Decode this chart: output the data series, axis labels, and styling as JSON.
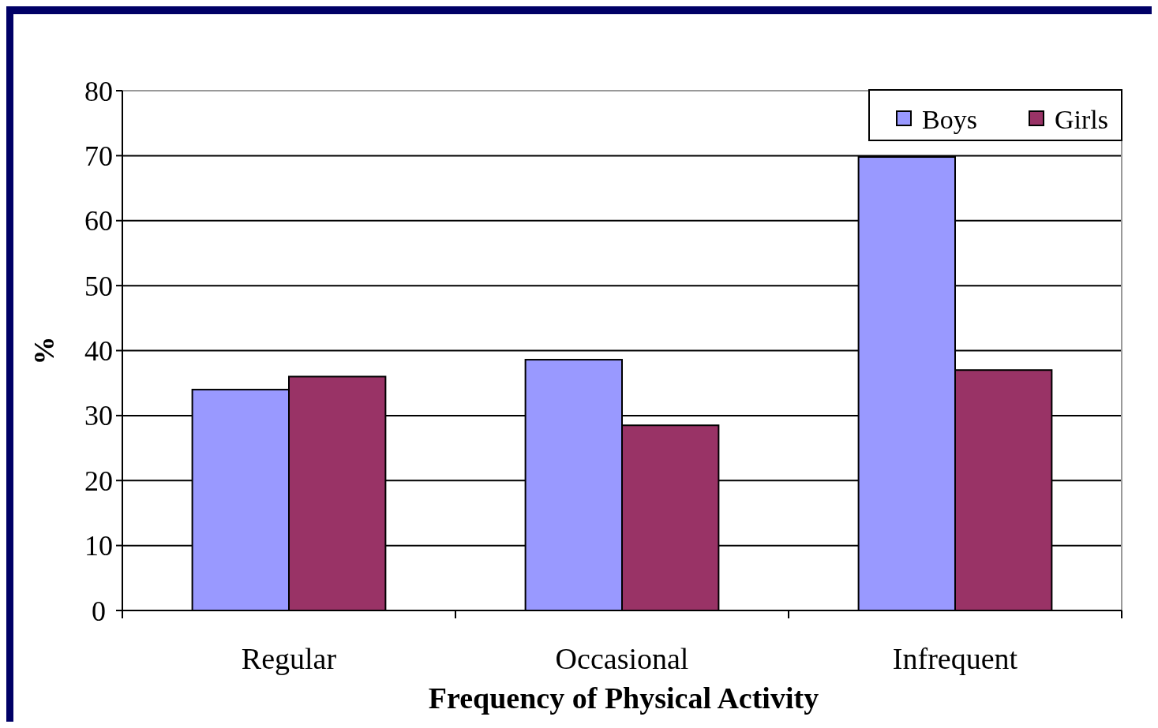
{
  "chart_data": {
    "type": "bar",
    "xlabel": "Frequency of Physical Activity",
    "ylabel": "%",
    "categories": [
      "Regular",
      "Occasional",
      "Infrequent"
    ],
    "series": [
      {
        "name": "Boys",
        "color": "#9999ff",
        "values": [
          34,
          38.6,
          69.8
        ]
      },
      {
        "name": "Girls",
        "color": "#993366",
        "values": [
          36,
          28.5,
          37
        ]
      }
    ],
    "ylim": [
      0,
      80
    ],
    "yticks": [
      0,
      10,
      20,
      30,
      40,
      50,
      60,
      70,
      80
    ],
    "grid": "y",
    "legend": "top right"
  }
}
